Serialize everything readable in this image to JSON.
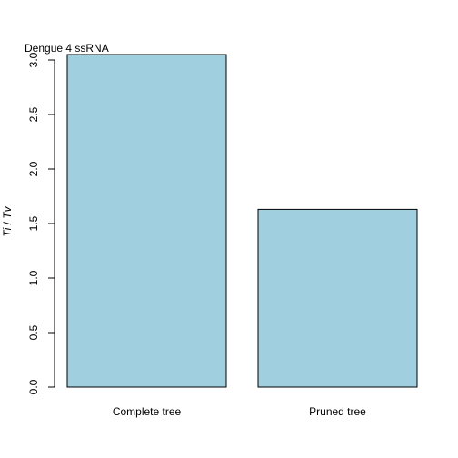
{
  "chart_data": {
    "type": "bar",
    "title": "Dengue 4 ssRNA",
    "xlabel": "",
    "ylabel": "Ti / Tv",
    "categories": [
      "Complete tree",
      "Pruned tree"
    ],
    "values": [
      3.05,
      1.63
    ],
    "ylim": [
      0,
      3.0
    ],
    "yticks": [
      "0.0",
      "0.5",
      "1.0",
      "1.5",
      "2.0",
      "2.5",
      "3.0"
    ],
    "grid": false,
    "bar_color": "#a0cfe0",
    "bar_edge_color": "#000000"
  }
}
